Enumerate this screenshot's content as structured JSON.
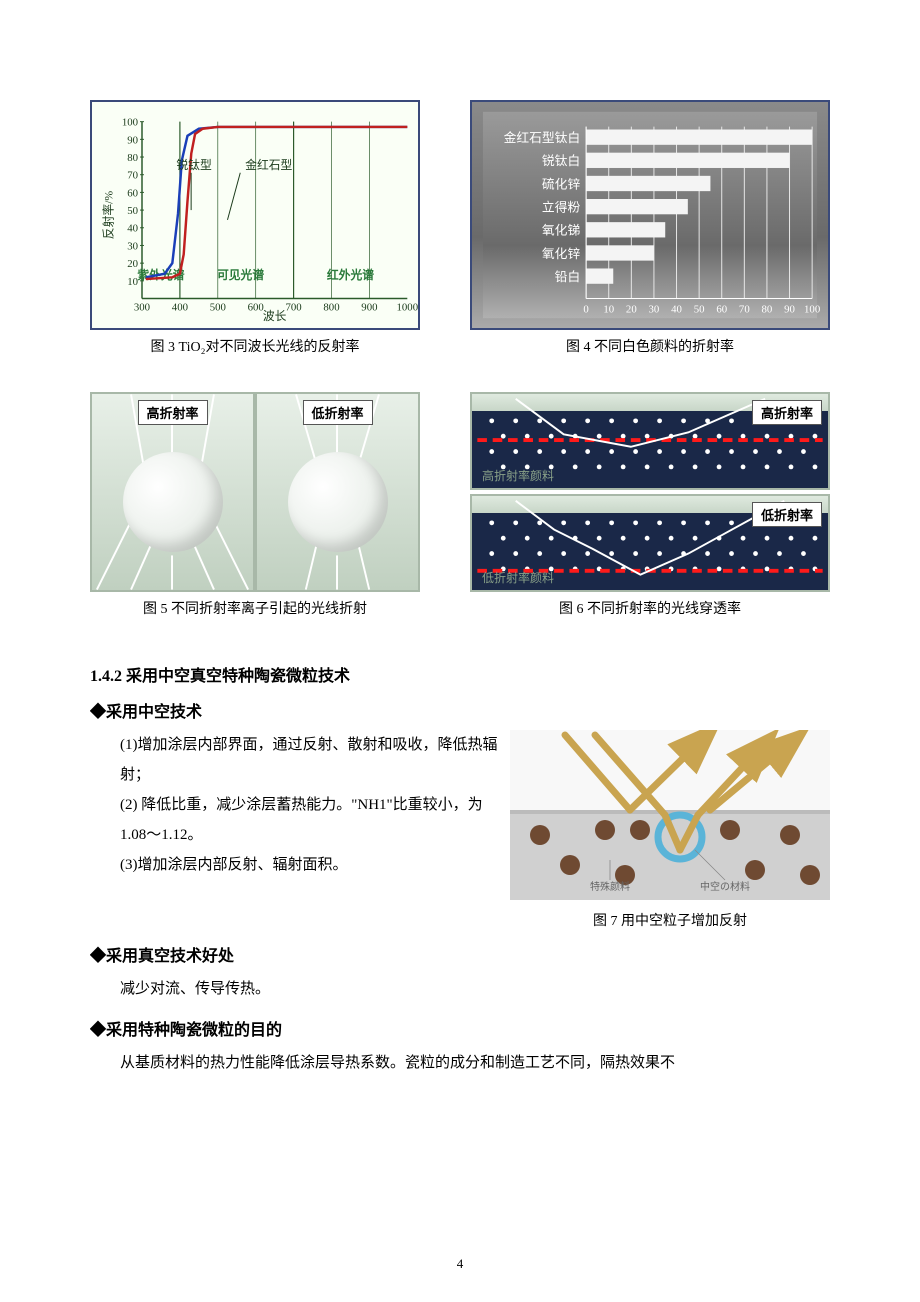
{
  "fig3": {
    "type": "line",
    "caption": "图 3  TiO₂对不同波长光线的反射率",
    "xlabel": "波长",
    "ylabel": "反射率/%",
    "ylim": [
      0,
      100
    ],
    "xlim": [
      300,
      1000
    ],
    "xticks": [
      300,
      400,
      500,
      600,
      700,
      800,
      900,
      1000
    ],
    "yticks": [
      10,
      20,
      30,
      40,
      50,
      60,
      70,
      80,
      90,
      100
    ],
    "series": [
      {
        "name": "锐钛型",
        "color": "#1a3fb8",
        "points": [
          [
            310,
            12
          ],
          [
            360,
            14
          ],
          [
            380,
            20
          ],
          [
            395,
            48
          ],
          [
            405,
            78
          ],
          [
            420,
            92
          ],
          [
            450,
            96
          ],
          [
            500,
            97
          ],
          [
            600,
            97
          ],
          [
            700,
            97
          ],
          [
            800,
            97
          ],
          [
            1000,
            97
          ]
        ]
      },
      {
        "name": "金红石型",
        "color": "#c02020",
        "points": [
          [
            310,
            11
          ],
          [
            380,
            12
          ],
          [
            400,
            14
          ],
          [
            410,
            25
          ],
          [
            420,
            55
          ],
          [
            430,
            82
          ],
          [
            440,
            93
          ],
          [
            460,
            96
          ],
          [
            500,
            97
          ],
          [
            600,
            97
          ],
          [
            700,
            97
          ],
          [
            800,
            97
          ],
          [
            1000,
            97
          ]
        ]
      }
    ],
    "regions": [
      {
        "label": "紫外光谱",
        "x": 350
      },
      {
        "label": "可见光谱",
        "x": 560
      },
      {
        "label": "红外光谱",
        "x": 850
      }
    ],
    "region_dividers": [
      400,
      700
    ],
    "gridlines_x": [
      500,
      600,
      700,
      800,
      900
    ],
    "background": "#fafff6",
    "axis_color": "#2a5a2a",
    "font_size_axis": 11,
    "font_size_label": 12
  },
  "fig4": {
    "type": "bar",
    "caption": "图 4 不同白色颜料的折射率",
    "categories": [
      "金红石型钛白",
      "锐钛白",
      "硫化锌",
      "立得粉",
      "氧化锑",
      "氧化锌",
      "铅白"
    ],
    "values": [
      100,
      90,
      55,
      45,
      35,
      30,
      12
    ],
    "xlim": [
      0,
      100
    ],
    "xticks": [
      0,
      10,
      20,
      30,
      40,
      50,
      60,
      70,
      80,
      90,
      100
    ],
    "bar_color": "#f4f4f4",
    "grid_color": "#e8e8e8",
    "label_color": "#ffffff",
    "background": "#7a7a7a",
    "font_size_label": 13,
    "font_size_tick": 11
  },
  "fig5": {
    "type": "diagram",
    "caption": "图 5 不同折射率离子引起的光线折射",
    "left_label": "高折射率",
    "right_label": "低折射率",
    "background": "#d8e4d8",
    "sphere_color": "#ffffff",
    "ray_color": "#ffffff"
  },
  "fig6": {
    "type": "diagram",
    "caption": "图 6 不同折射率的光线穿透率",
    "top_label": "高折射率",
    "bottom_label": "低折射率",
    "top_depth": 0.4,
    "bottom_depth": 0.75,
    "redline_color": "#ff1a1a",
    "path_color": "#ffffff",
    "dot_color": "#ffffff",
    "medium_color": "#1a2848",
    "sky_color": "#dfeadf",
    "top_caption": "高折射率颜料",
    "bottom_caption": "低折射率颜料"
  },
  "fig7": {
    "type": "diagram",
    "caption": "图 7 用中空粒子增加反射",
    "background": "#f8f8f8",
    "surface_color": "#cfcfcf",
    "hollow_color": "#5ab4d8",
    "particle_color": "#6f4a32",
    "arrow_color": "#c9a450",
    "label_left": "特殊颜料",
    "label_right": "中空の材料"
  },
  "text": {
    "heading_142": "1.4.2 采用中空真空特种陶瓷微粒技术",
    "h_hollow": "采用中空技术",
    "hollow_1": "(1)增加涂层内部界面，通过反射、散射和吸收，降低热辐射；",
    "hollow_2": "(2) 降低比重，减少涂层蓄热能力。\"NH1\"比重较小，为 1.08～1.12。",
    "hollow_3": "(3)增加涂层内部反射、辐射面积。",
    "h_vacuum": "采用真空技术好处",
    "vacuum_1": "减少对流、传导传热。",
    "h_ceramic": "采用特种陶瓷微粒的目的",
    "ceramic_1": "从基质材料的热力性能降低涂层导热系数。瓷粒的成分和制造工艺不同，隔热效果不"
  },
  "page_number": "4"
}
